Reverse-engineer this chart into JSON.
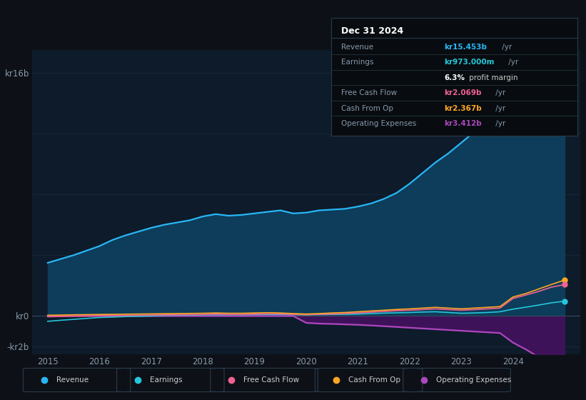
{
  "background_color": "#0d1117",
  "plot_bg_color": "#0d1b2a",
  "grid_color": "#1e2d3d",
  "text_color": "#8899aa",
  "years": [
    2015.0,
    2015.25,
    2015.5,
    2015.75,
    2016.0,
    2016.25,
    2016.5,
    2016.75,
    2017.0,
    2017.25,
    2017.5,
    2017.75,
    2018.0,
    2018.25,
    2018.5,
    2018.75,
    2019.0,
    2019.25,
    2019.5,
    2019.75,
    2020.0,
    2020.25,
    2020.5,
    2020.75,
    2021.0,
    2021.25,
    2021.5,
    2021.75,
    2022.0,
    2022.25,
    2022.5,
    2022.75,
    2023.0,
    2023.25,
    2023.5,
    2023.75,
    2024.0,
    2024.25,
    2024.5,
    2024.75,
    2025.0
  ],
  "revenue": [
    3.5,
    3.75,
    4.0,
    4.3,
    4.6,
    5.0,
    5.3,
    5.55,
    5.8,
    6.0,
    6.15,
    6.3,
    6.55,
    6.7,
    6.6,
    6.65,
    6.75,
    6.85,
    6.95,
    6.75,
    6.8,
    6.95,
    7.0,
    7.05,
    7.2,
    7.4,
    7.7,
    8.1,
    8.7,
    9.4,
    10.1,
    10.7,
    11.4,
    12.1,
    12.7,
    13.2,
    13.7,
    14.2,
    14.7,
    15.1,
    15.453
  ],
  "earnings": [
    -0.35,
    -0.28,
    -0.22,
    -0.16,
    -0.1,
    -0.07,
    -0.04,
    -0.02,
    0.0,
    0.03,
    0.05,
    0.06,
    0.07,
    0.08,
    0.08,
    0.08,
    0.09,
    0.1,
    0.1,
    0.09,
    0.08,
    0.09,
    0.1,
    0.11,
    0.13,
    0.16,
    0.19,
    0.21,
    0.23,
    0.26,
    0.28,
    0.23,
    0.18,
    0.2,
    0.23,
    0.28,
    0.45,
    0.58,
    0.72,
    0.87,
    0.973
  ],
  "free_cash_flow": [
    -0.05,
    -0.03,
    -0.01,
    0.0,
    0.02,
    0.03,
    0.04,
    0.05,
    0.06,
    0.07,
    0.08,
    0.09,
    0.1,
    0.12,
    0.1,
    0.1,
    0.12,
    0.14,
    0.14,
    0.1,
    0.09,
    0.11,
    0.13,
    0.16,
    0.2,
    0.25,
    0.3,
    0.35,
    0.38,
    0.42,
    0.47,
    0.42,
    0.38,
    0.42,
    0.47,
    0.52,
    1.15,
    1.38,
    1.62,
    1.9,
    2.069
  ],
  "cash_from_op": [
    0.05,
    0.06,
    0.08,
    0.09,
    0.1,
    0.11,
    0.12,
    0.13,
    0.14,
    0.15,
    0.16,
    0.17,
    0.18,
    0.2,
    0.18,
    0.18,
    0.2,
    0.22,
    0.2,
    0.16,
    0.13,
    0.16,
    0.2,
    0.23,
    0.28,
    0.33,
    0.38,
    0.43,
    0.47,
    0.52,
    0.57,
    0.52,
    0.47,
    0.52,
    0.57,
    0.62,
    1.25,
    1.48,
    1.78,
    2.08,
    2.367
  ],
  "op_expenses": [
    0.0,
    0.0,
    0.0,
    0.0,
    0.0,
    0.0,
    0.0,
    0.0,
    0.0,
    0.0,
    0.0,
    0.0,
    0.0,
    0.0,
    0.0,
    0.0,
    0.0,
    0.0,
    0.0,
    0.0,
    -0.45,
    -0.5,
    -0.52,
    -0.55,
    -0.58,
    -0.62,
    -0.67,
    -0.72,
    -0.77,
    -0.82,
    -0.87,
    -0.92,
    -0.97,
    -1.02,
    -1.07,
    -1.12,
    -1.75,
    -2.2,
    -2.7,
    -3.1,
    -3.412
  ],
  "revenue_color": "#29b6f6",
  "revenue_fill": "#0d3d5a",
  "earnings_color": "#26c6da",
  "free_cash_flow_color": "#f06292",
  "cash_from_op_color": "#ffa726",
  "op_expenses_color": "#ab47bc",
  "op_expenses_fill": "#3d1259",
  "ylim": [
    -2.5,
    17.5
  ],
  "xlim": [
    2014.7,
    2025.3
  ],
  "ytick_vals": [
    -2,
    0,
    16
  ],
  "ytick_labels": [
    "-kr2b",
    "kr0",
    "kr16b"
  ],
  "xtick_vals": [
    2015,
    2016,
    2017,
    2018,
    2019,
    2020,
    2021,
    2022,
    2023,
    2024
  ],
  "info_box_title": "Dec 31 2024",
  "info_rows": [
    {
      "label": "Revenue",
      "value": "kr15.453b",
      "suffix": " /yr",
      "color": "#29b6f6"
    },
    {
      "label": "Earnings",
      "value": "kr973.000m",
      "suffix": " /yr",
      "color": "#26c6da"
    },
    {
      "label": "",
      "value": "6.3%",
      "suffix": " profit margin",
      "color": "#ffffff"
    },
    {
      "label": "Free Cash Flow",
      "value": "kr2.069b",
      "suffix": " /yr",
      "color": "#f06292"
    },
    {
      "label": "Cash From Op",
      "value": "kr2.367b",
      "suffix": " /yr",
      "color": "#ffa726"
    },
    {
      "label": "Operating Expenses",
      "value": "kr3.412b",
      "suffix": " /yr",
      "color": "#ab47bc"
    }
  ],
  "legend_items": [
    {
      "label": "Revenue",
      "color": "#29b6f6"
    },
    {
      "label": "Earnings",
      "color": "#26c6da"
    },
    {
      "label": "Free Cash Flow",
      "color": "#f06292"
    },
    {
      "label": "Cash From Op",
      "color": "#ffa726"
    },
    {
      "label": "Operating Expenses",
      "color": "#ab47bc"
    }
  ]
}
